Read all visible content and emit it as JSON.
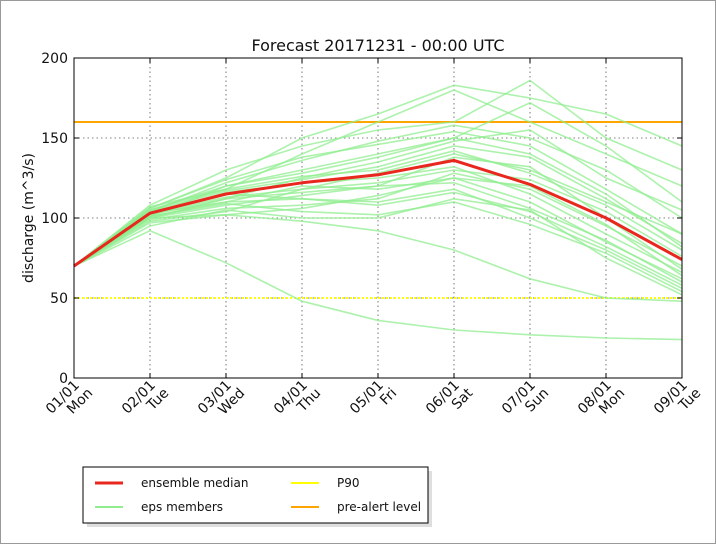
{
  "chart_data": {
    "type": "line",
    "title": "Forecast 20171231 - 00:00 UTC",
    "xlabel": "",
    "ylabel": "discharge (m^3/s)",
    "ylim": [
      0,
      200
    ],
    "yticks": [
      0,
      50,
      100,
      150,
      200
    ],
    "grid": true,
    "x": [
      "01/01 Mon",
      "02/01 Tue",
      "03/01 Wed",
      "04/01 Thu",
      "05/01 Fri",
      "06/01 Sat",
      "07/01 Sun",
      "08/01 Mon",
      "09/01 Tue"
    ],
    "x_dates": [
      "01/01",
      "02/01",
      "03/01",
      "04/01",
      "05/01",
      "06/01",
      "07/01",
      "08/01",
      "09/01"
    ],
    "x_days": [
      "Mon",
      "Tue",
      "Wed",
      "Thu",
      "Fri",
      "Sat",
      "Sun",
      "Mon",
      "Tue"
    ],
    "thresholds": [
      {
        "name": "P90",
        "value": 50,
        "color": "#ffff00"
      },
      {
        "name": "pre-alert level",
        "value": 160,
        "color": "#ffa500"
      }
    ],
    "series": [
      {
        "name": "ensemble median",
        "color": "#e8281e",
        "values": [
          70,
          103,
          115,
          122,
          127,
          136,
          121,
          100,
          74
        ]
      }
    ],
    "ensemble": {
      "name": "eps members",
      "color": "#90ee90",
      "members": [
        [
          70,
          92,
          72,
          48,
          36,
          30,
          27,
          25,
          24
        ],
        [
          70,
          100,
          102,
          98,
          92,
          80,
          62,
          50,
          48
        ],
        [
          70,
          95,
          105,
          100,
          100,
          112,
          105,
          75,
          52
        ],
        [
          70,
          104,
          115,
          112,
          110,
          118,
          100,
          80,
          56
        ],
        [
          70,
          101,
          120,
          130,
          140,
          150,
          140,
          115,
          82
        ],
        [
          70,
          107,
          118,
          140,
          160,
          180,
          160,
          140,
          120
        ],
        [
          70,
          106,
          125,
          150,
          165,
          183,
          175,
          165,
          145
        ],
        [
          70,
          108,
          130,
          145,
          155,
          160,
          186,
          150,
          130
        ],
        [
          70,
          100,
          112,
          125,
          135,
          148,
          155,
          125,
          105
        ],
        [
          70,
          98,
          104,
          118,
          128,
          140,
          130,
          110,
          90
        ],
        [
          70,
          103,
          110,
          120,
          118,
          125,
          110,
          85,
          62
        ],
        [
          70,
          99,
          106,
          108,
          112,
          128,
          118,
          95,
          70
        ],
        [
          70,
          105,
          118,
          126,
          130,
          142,
          128,
          108,
          80
        ],
        [
          70,
          102,
          116,
          122,
          125,
          132,
          115,
          90,
          66
        ],
        [
          70,
          101,
          110,
          112,
          108,
          116,
          104,
          82,
          58
        ],
        [
          70,
          104,
          122,
          136,
          148,
          158,
          150,
          130,
          100
        ],
        [
          70,
          106,
          124,
          138,
          146,
          154,
          145,
          118,
          90
        ],
        [
          70,
          100,
          108,
          114,
          120,
          138,
          132,
          100,
          68
        ],
        [
          70,
          103,
          113,
          118,
          122,
          130,
          124,
          104,
          76
        ],
        [
          70,
          105,
          120,
          128,
          138,
          150,
          172,
          145,
          110
        ],
        [
          70,
          97,
          102,
          106,
          114,
          125,
          120,
          96,
          64
        ],
        [
          70,
          102,
          112,
          116,
          120,
          122,
          106,
          86,
          60
        ],
        [
          70,
          104,
          117,
          124,
          132,
          145,
          138,
          112,
          84
        ],
        [
          70,
          101,
          109,
          104,
          102,
          110,
          96,
          78,
          54
        ]
      ]
    },
    "legend": {
      "position": "below",
      "entries": [
        "ensemble median",
        "eps members",
        "P90",
        "pre-alert level"
      ]
    }
  }
}
